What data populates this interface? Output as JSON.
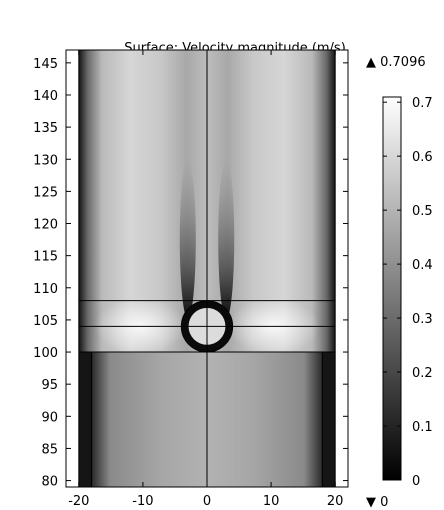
{
  "chart_data": {
    "type": "heatmap",
    "title": "Surface: Velocity magnitude (m/s)",
    "xlabel": "",
    "ylabel": "",
    "xlim": [
      -22,
      22
    ],
    "ylim": [
      79,
      147
    ],
    "x_ticks": [
      -20,
      -10,
      0,
      10,
      20
    ],
    "y_ticks": [
      80,
      85,
      90,
      95,
      100,
      105,
      110,
      115,
      120,
      125,
      130,
      135,
      140,
      145
    ],
    "colormap": "grayscale",
    "color_range": [
      0,
      0.7096
    ],
    "colorbar_max_label": "▲ 0.7096",
    "colorbar_min_label": "▼ 0",
    "colorbar_ticks": [
      0,
      0.1,
      0.2,
      0.3,
      0.4,
      0.5,
      0.6,
      0.7
    ],
    "geometry": {
      "channel_x": [
        -20,
        20
      ],
      "upper_channel_walls_x": [
        -20,
        20
      ],
      "lower_channel_walls_x": [
        -18,
        18
      ],
      "horizontal_lines_y": [
        100,
        104,
        108
      ],
      "centerline_x": 0,
      "cylinder": {
        "center_x": 0,
        "center_y": 104,
        "radius": 4
      }
    },
    "field_description": {
      "upper_region_velocity": 0.6,
      "lower_region_velocity": 0.45,
      "wall_velocity": 0,
      "wake_streaks_x": [
        -3,
        3
      ]
    },
    "grid": false
  }
}
